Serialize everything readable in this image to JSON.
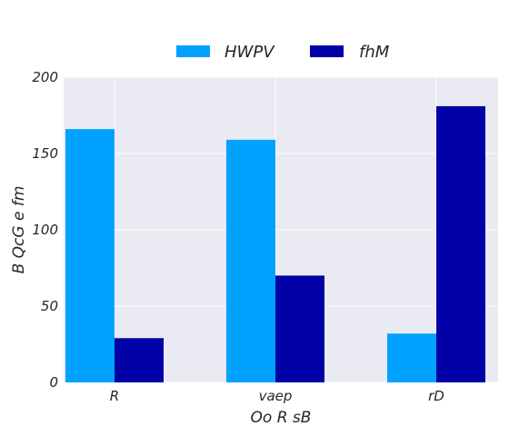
{
  "chart_data": {
    "type": "bar",
    "title": "",
    "xlabel": "Oo R  sB",
    "ylabel": "B QcG e fm",
    "categories": [
      "R",
      "vaep",
      "rD"
    ],
    "series": [
      {
        "name": "HWPV",
        "color": "#00a2ff",
        "values": [
          166,
          159,
          32
        ]
      },
      {
        "name": "fhM",
        "color": "#0000a6",
        "values": [
          29,
          70,
          181
        ]
      }
    ],
    "ylim": [
      0,
      200
    ],
    "yticks": [
      0,
      50,
      100,
      150,
      200
    ],
    "grid": true,
    "legend": "top-center, above plot"
  }
}
